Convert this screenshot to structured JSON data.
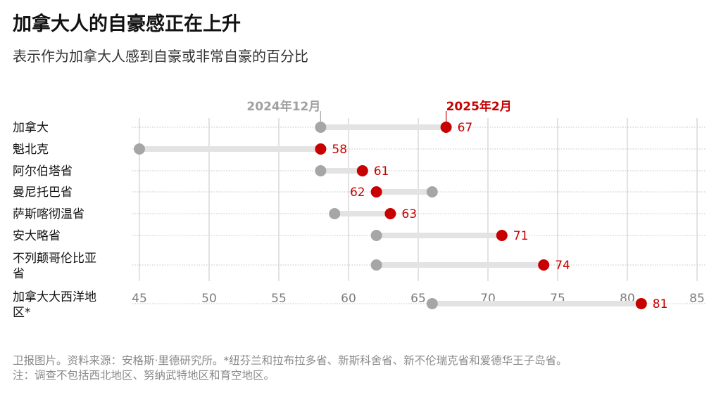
{
  "header": {
    "title": "加拿大人的自豪感正在上升",
    "subtitle": "表示作为加拿大人感到自豪或非常自豪的百分比"
  },
  "footer": {
    "line1": "卫报图片。资料来源：安格斯·里德研究所。*纽芬兰和拉布拉多省、新斯科舍省、新不伦瑞克省和爱德华王子岛省。",
    "line2": "注：调查不包括西北地区、努纳武特地区和育空地区。"
  },
  "colors": {
    "old": "#a6a6a6",
    "new": "#c70000",
    "bar": "#e3e3e3"
  },
  "chart_data": {
    "type": "dumbbell",
    "xlim": [
      45,
      85
    ],
    "xticks": [
      45,
      50,
      55,
      60,
      65,
      70,
      75,
      80,
      85
    ],
    "series": [
      {
        "name": "2024年12月",
        "values": [
          58,
          45,
          58,
          66,
          59,
          62,
          62,
          66
        ]
      },
      {
        "name": "2025年2月",
        "values": [
          67,
          58,
          61,
          62,
          63,
          71,
          74,
          81
        ]
      }
    ],
    "categories": [
      [
        "加拿大"
      ],
      [
        "魁北克"
      ],
      [
        "阿尔伯塔省"
      ],
      [
        "曼尼托巴省"
      ],
      [
        "萨斯喀彻温省"
      ],
      [
        "安大略省"
      ],
      [
        "不列颠哥伦比亚",
        "省"
      ],
      [
        "加拿大大西洋地",
        "区*"
      ]
    ],
    "value_labels": [
      "67",
      "58",
      "61",
      "62",
      "63",
      "71",
      "74",
      "81"
    ]
  }
}
